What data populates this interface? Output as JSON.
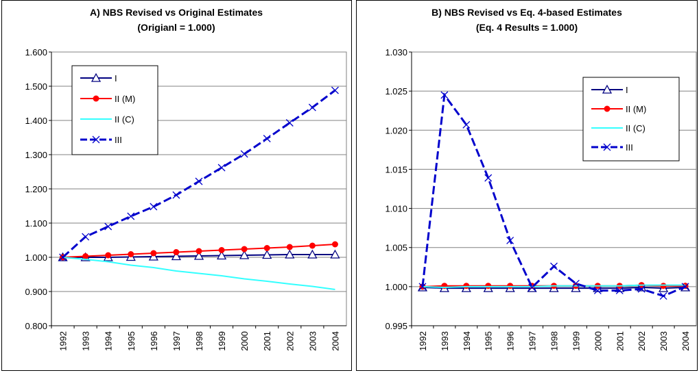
{
  "chart_data": [
    {
      "type": "line",
      "title": "A) NBS Revised vs Original Estimates",
      "subtitle": "(Origianl = 1.000)",
      "categories": [
        "1992",
        "1993",
        "1994",
        "1995",
        "1996",
        "1997",
        "1998",
        "1999",
        "2000",
        "2001",
        "2002",
        "2003",
        "2004"
      ],
      "ylim": [
        0.8,
        1.6
      ],
      "yticks": [
        {
          "value": 0.8,
          "label": "0.800"
        },
        {
          "value": 0.9,
          "label": "0.900"
        },
        {
          "value": 1.0,
          "label": "1.000"
        },
        {
          "value": 1.1,
          "label": "1.100"
        },
        {
          "value": 1.2,
          "label": "1.200"
        },
        {
          "value": 1.3,
          "label": "1.300"
        },
        {
          "value": 1.4,
          "label": "1.400"
        },
        {
          "value": 1.5,
          "label": "1.500"
        },
        {
          "value": 1.6,
          "label": "1.600"
        }
      ],
      "grid": true,
      "series": [
        {
          "name": "I",
          "color": "#000080",
          "marker": "triangle",
          "line_style": "solid",
          "values": [
            1.0,
            1.0,
            1.0,
            1.001,
            1.002,
            1.003,
            1.004,
            1.005,
            1.006,
            1.007,
            1.008,
            1.008,
            1.008
          ]
        },
        {
          "name": "II (M)",
          "color": "#ff0000",
          "marker": "circle",
          "line_style": "solid",
          "values": [
            1.0,
            1.003,
            1.006,
            1.009,
            1.012,
            1.015,
            1.018,
            1.021,
            1.024,
            1.027,
            1.03,
            1.034,
            1.038
          ]
        },
        {
          "name": "II (C)",
          "color": "#33ffff",
          "marker": "none",
          "line_style": "solid",
          "values": [
            1.0,
            0.994,
            0.987,
            0.977,
            0.97,
            0.96,
            0.953,
            0.946,
            0.937,
            0.93,
            0.922,
            0.915,
            0.906
          ]
        },
        {
          "name": "III",
          "color": "#0000cc",
          "marker": "x",
          "line_style": "dashed",
          "values": [
            1.0,
            1.06,
            1.09,
            1.12,
            1.148,
            1.182,
            1.222,
            1.262,
            1.302,
            1.347,
            1.393,
            1.438,
            1.488
          ]
        }
      ]
    },
    {
      "type": "line",
      "title": "B) NBS Revised vs Eq. 4-based Estimates",
      "subtitle": "(Eq. 4 Results = 1.000)",
      "categories": [
        "1992",
        "1993",
        "1994",
        "1995",
        "1996",
        "1997",
        "1998",
        "1999",
        "2000",
        "2001",
        "2002",
        "2003",
        "2004"
      ],
      "ylim": [
        0.995,
        1.03
      ],
      "yticks": [
        {
          "value": 0.995,
          "label": "0.995"
        },
        {
          "value": 1.0,
          "label": "1.000"
        },
        {
          "value": 1.005,
          "label": "1.005"
        },
        {
          "value": 1.01,
          "label": "1.010"
        },
        {
          "value": 1.015,
          "label": "1.015"
        },
        {
          "value": 1.02,
          "label": "1.020"
        },
        {
          "value": 1.025,
          "label": "1.025"
        },
        {
          "value": 1.03,
          "label": "1.030"
        }
      ],
      "grid": true,
      "series": [
        {
          "name": "I",
          "color": "#000080",
          "marker": "triangle",
          "line_style": "solid",
          "values": [
            0.9999,
            0.9998,
            0.9998,
            0.9998,
            0.9998,
            0.9998,
            0.9998,
            0.9998,
            0.9998,
            0.9998,
            0.9999,
            0.9998,
            0.9999
          ]
        },
        {
          "name": "II (M)",
          "color": "#ff0000",
          "marker": "circle",
          "line_style": "solid",
          "values": [
            1.0,
            1.0001,
            1.0001,
            1.0001,
            1.0001,
            1.0001,
            1.0001,
            1.0001,
            1.0001,
            1.0001,
            1.0002,
            1.0001,
            1.0001
          ]
        },
        {
          "name": "II (C)",
          "color": "#33ffff",
          "marker": "none",
          "line_style": "solid",
          "values": [
            1.0,
            0.9999,
            1.0,
            1.0,
            1.0,
            1.0,
            1.0001,
            1.0001,
            1.0001,
            1.0001,
            1.0002,
            1.0002,
            1.0002
          ]
        },
        {
          "name": "III",
          "color": "#0000cc",
          "marker": "x",
          "line_style": "dashed",
          "values": [
            1.0,
            1.0245,
            1.0207,
            1.0139,
            1.0059,
            0.9999,
            1.0026,
            1.0004,
            0.9995,
            0.9995,
            0.9997,
            0.9988,
            1.0
          ]
        }
      ]
    }
  ]
}
